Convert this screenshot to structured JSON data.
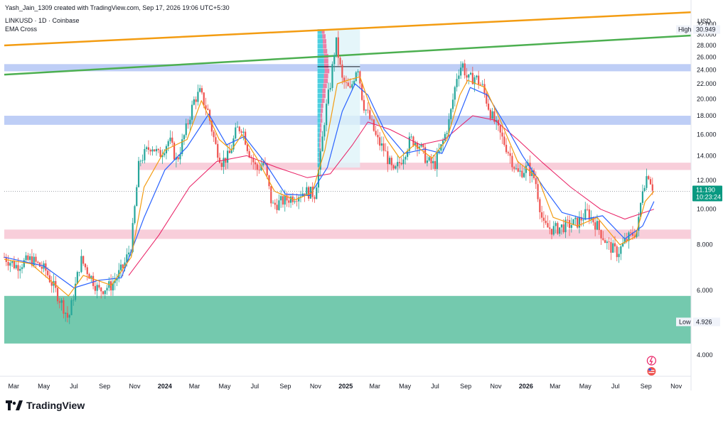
{
  "header": {
    "credit": "Yash_Jain_1309 created with TradingView.com, Sep 17, 2026 19:06 UTC+5:30",
    "symbol": "LINKUSD · 1D · Coinbase",
    "indicator": "EMA Cross"
  },
  "brand": {
    "logo_icon": "tradingview-logo-icon",
    "name": "TradingView"
  },
  "chart_data": {
    "type": "candlestick",
    "symbol": "LINKUSD",
    "interval": "1D",
    "exchange": "Coinbase",
    "currency": "USD",
    "y_axis": {
      "scale": "log",
      "ticks": [
        "32.000",
        "30.000",
        "28.000",
        "26.000",
        "24.000",
        "22.000",
        "20.000",
        "18.000",
        "16.000",
        "14.000",
        "12.000",
        "10.000",
        "8.000",
        "6.000",
        "4.000"
      ],
      "tick_values": [
        32,
        30,
        28,
        26,
        24,
        22,
        20,
        18,
        16,
        14,
        12,
        10,
        8,
        6,
        4
      ],
      "range": [
        3.5,
        35
      ]
    },
    "x_axis": {
      "ticks": [
        "Mar",
        "May",
        "Jul",
        "Sep",
        "Nov",
        "2024",
        "Mar",
        "May",
        "Jul",
        "Sep",
        "Nov",
        "2025",
        "Mar",
        "May",
        "Jul",
        "Sep",
        "Nov",
        "2026",
        "Mar",
        "May",
        "Jul",
        "Sep",
        "Nov"
      ],
      "tick_dates": [
        "2023-03-01",
        "2023-05-01",
        "2023-07-01",
        "2023-09-01",
        "2023-11-01",
        "2024-01-01",
        "2024-03-01",
        "2024-05-01",
        "2024-07-01",
        "2024-09-01",
        "2024-11-01",
        "2025-01-01",
        "2025-03-01",
        "2025-05-01",
        "2025-07-01",
        "2025-09-01",
        "2025-11-01",
        "2026-01-01",
        "2026-03-01",
        "2026-05-01",
        "2026-07-01",
        "2026-09-01",
        "2026-11-01"
      ],
      "bold_labels": [
        "2024",
        "2025",
        "2026"
      ],
      "range": [
        "2023-02-10",
        "2026-12-01"
      ]
    },
    "price_points": [
      [
        "2023-02-10",
        7.4
      ],
      [
        "2023-03-05",
        7.0
      ],
      [
        "2023-04-05",
        7.3
      ],
      [
        "2023-05-05",
        6.8
      ],
      [
        "2023-06-10",
        5.4
      ],
      [
        "2023-06-20",
        5.0
      ],
      [
        "2023-07-15",
        7.3
      ],
      [
        "2023-08-20",
        6.0
      ],
      [
        "2023-09-15",
        6.2
      ],
      [
        "2023-10-10",
        7.0
      ],
      [
        "2023-10-25",
        8.0
      ],
      [
        "2023-11-10",
        13.5
      ],
      [
        "2023-12-05",
        15.0
      ],
      [
        "2023-12-20",
        14.0
      ],
      [
        "2024-01-10",
        15.5
      ],
      [
        "2024-01-25",
        13.5
      ],
      [
        "2024-02-10",
        16.0
      ],
      [
        "2024-03-01",
        20.0
      ],
      [
        "2024-03-12",
        20.8
      ],
      [
        "2024-03-28",
        18.5
      ],
      [
        "2024-04-12",
        15.0
      ],
      [
        "2024-04-25",
        13.5
      ],
      [
        "2024-05-10",
        14.0
      ],
      [
        "2024-05-25",
        16.5
      ],
      [
        "2024-06-05",
        16.8
      ],
      [
        "2024-06-18",
        14.5
      ],
      [
        "2024-07-05",
        12.8
      ],
      [
        "2024-07-20",
        13.5
      ],
      [
        "2024-08-05",
        10.2
      ],
      [
        "2024-08-25",
        10.5
      ],
      [
        "2024-09-15",
        10.8
      ],
      [
        "2024-10-10",
        11.2
      ],
      [
        "2024-10-30",
        11.0
      ],
      [
        "2024-11-10",
        13.5
      ],
      [
        "2024-11-20",
        18.0
      ],
      [
        "2024-12-01",
        22.0
      ],
      [
        "2024-12-12",
        29.0
      ],
      [
        "2024-12-25",
        22.5
      ],
      [
        "2025-01-10",
        21.0
      ],
      [
        "2025-01-25",
        25.0
      ],
      [
        "2025-02-05",
        19.5
      ],
      [
        "2025-02-20",
        17.5
      ],
      [
        "2025-03-05",
        15.5
      ],
      [
        "2025-03-20",
        14.5
      ],
      [
        "2025-04-08",
        12.5
      ],
      [
        "2025-04-25",
        13.8
      ],
      [
        "2025-05-12",
        15.5
      ],
      [
        "2025-05-28",
        15.2
      ],
      [
        "2025-06-15",
        13.5
      ],
      [
        "2025-06-30",
        13.2
      ],
      [
        "2025-07-15",
        15.0
      ],
      [
        "2025-07-30",
        17.5
      ],
      [
        "2025-08-15",
        23.5
      ],
      [
        "2025-08-25",
        25.0
      ],
      [
        "2025-09-05",
        22.5
      ],
      [
        "2025-09-20",
        23.0
      ],
      [
        "2025-10-05",
        21.5
      ],
      [
        "2025-10-20",
        18.5
      ],
      [
        "2025-11-05",
        16.5
      ],
      [
        "2025-11-25",
        14.5
      ],
      [
        "2025-12-15",
        12.5
      ],
      [
        "2026-01-05",
        13.0
      ],
      [
        "2026-01-20",
        12.0
      ],
      [
        "2026-02-05",
        9.0
      ],
      [
        "2026-02-25",
        8.8
      ],
      [
        "2026-03-20",
        9.0
      ],
      [
        "2026-04-15",
        9.2
      ],
      [
        "2026-05-05",
        9.8
      ],
      [
        "2026-05-25",
        9.0
      ],
      [
        "2026-06-15",
        8.0
      ],
      [
        "2026-07-05",
        7.6
      ],
      [
        "2026-07-25",
        8.3
      ],
      [
        "2026-08-15",
        8.8
      ],
      [
        "2026-08-25",
        11.5
      ],
      [
        "2026-09-05",
        12.6
      ],
      [
        "2026-09-17",
        11.19
      ]
    ],
    "ema_fast_points": [
      [
        "2023-02-10",
        7.3
      ],
      [
        "2023-04-05",
        7.1
      ],
      [
        "2023-06-20",
        5.8
      ],
      [
        "2023-07-20",
        6.6
      ],
      [
        "2023-09-15",
        6.2
      ],
      [
        "2023-10-25",
        7.4
      ],
      [
        "2023-11-20",
        11.5
      ],
      [
        "2024-01-01",
        14.5
      ],
      [
        "2024-02-15",
        15.5
      ],
      [
        "2024-03-15",
        19.8
      ],
      [
        "2024-04-20",
        15.5
      ],
      [
        "2024-05-15",
        14.5
      ],
      [
        "2024-06-05",
        16.0
      ],
      [
        "2024-07-05",
        13.8
      ],
      [
        "2024-08-10",
        11.2
      ],
      [
        "2024-09-20",
        10.6
      ],
      [
        "2024-10-25",
        11.1
      ],
      [
        "2024-11-20",
        14.5
      ],
      [
        "2024-12-15",
        22.0
      ],
      [
        "2025-01-05",
        22.5
      ],
      [
        "2025-01-30",
        23.0
      ],
      [
        "2025-02-20",
        19.0
      ],
      [
        "2025-03-25",
        15.5
      ],
      [
        "2025-04-20",
        13.8
      ],
      [
        "2025-05-20",
        15.0
      ],
      [
        "2025-06-25",
        13.8
      ],
      [
        "2025-07-25",
        15.5
      ],
      [
        "2025-08-20",
        20.5
      ],
      [
        "2025-09-05",
        22.5
      ],
      [
        "2025-10-10",
        21.5
      ],
      [
        "2025-11-10",
        17.5
      ],
      [
        "2025-12-15",
        13.5
      ],
      [
        "2026-01-25",
        12.2
      ],
      [
        "2026-02-25",
        9.5
      ],
      [
        "2026-04-15",
        9.0
      ],
      [
        "2026-05-25",
        9.5
      ],
      [
        "2026-07-10",
        8.0
      ],
      [
        "2026-08-10",
        8.4
      ],
      [
        "2026-08-30",
        10.5
      ],
      [
        "2026-09-17",
        11.2
      ]
    ],
    "ema_slow_points": [
      [
        "2023-02-10",
        7.4
      ],
      [
        "2023-05-01",
        7.0
      ],
      [
        "2023-07-01",
        6.1
      ],
      [
        "2023-08-20",
        6.4
      ],
      [
        "2023-10-05",
        6.5
      ],
      [
        "2023-11-20",
        9.5
      ],
      [
        "2024-01-01",
        12.8
      ],
      [
        "2024-02-15",
        14.8
      ],
      [
        "2024-03-30",
        18.2
      ],
      [
        "2024-05-05",
        15.0
      ],
      [
        "2024-06-10",
        15.8
      ],
      [
        "2024-07-20",
        13.5
      ],
      [
        "2024-09-01",
        11.0
      ],
      [
        "2024-10-20",
        10.9
      ],
      [
        "2024-11-25",
        13.0
      ],
      [
        "2024-12-25",
        18.5
      ],
      [
        "2025-01-20",
        22.0
      ],
      [
        "2025-02-15",
        20.5
      ],
      [
        "2025-03-20",
        16.5
      ],
      [
        "2025-04-30",
        14.2
      ],
      [
        "2025-06-10",
        14.6
      ],
      [
        "2025-07-15",
        14.2
      ],
      [
        "2025-08-15",
        17.5
      ],
      [
        "2025-09-10",
        21.5
      ],
      [
        "2025-10-15",
        20.5
      ],
      [
        "2025-11-20",
        17.0
      ],
      [
        "2025-12-25",
        14.0
      ],
      [
        "2026-02-05",
        11.5
      ],
      [
        "2026-03-15",
        9.8
      ],
      [
        "2026-05-01",
        9.4
      ],
      [
        "2026-06-05",
        9.6
      ],
      [
        "2026-07-20",
        8.3
      ],
      [
        "2026-08-25",
        9.0
      ],
      [
        "2026-09-17",
        10.5
      ]
    ],
    "ema_long_points": [
      [
        "2023-10-20",
        6.6
      ],
      [
        "2023-12-20",
        8.5
      ],
      [
        "2024-02-20",
        11.5
      ],
      [
        "2024-04-15",
        13.5
      ],
      [
        "2024-06-15",
        14.0
      ],
      [
        "2024-08-15",
        13.0
      ],
      [
        "2024-10-15",
        12.2
      ],
      [
        "2024-12-01",
        12.5
      ],
      [
        "2025-01-15",
        15.0
      ],
      [
        "2025-02-15",
        17.3
      ],
      [
        "2025-04-01",
        16.5
      ],
      [
        "2025-06-01",
        15.0
      ],
      [
        "2025-07-20",
        15.5
      ],
      [
        "2025-09-15",
        18.0
      ],
      [
        "2025-10-30",
        17.5
      ],
      [
        "2025-12-15",
        15.5
      ],
      [
        "2026-02-01",
        13.5
      ],
      [
        "2026-04-01",
        11.5
      ],
      [
        "2026-06-01",
        10.0
      ],
      [
        "2026-07-20",
        9.4
      ],
      [
        "2026-09-17",
        10.0
      ]
    ],
    "trendlines": [
      {
        "color": "#f39c12",
        "from": [
          "2023-02-10",
          28.0
        ],
        "to": [
          "2026-12-01",
          34.5
        ]
      },
      {
        "color": "#4caf50",
        "from": [
          "2023-02-10",
          23.3
        ],
        "to": [
          "2026-12-01",
          29.8
        ]
      }
    ],
    "zones": [
      {
        "color": "#b3c5f5",
        "low": 23.8,
        "high": 24.9,
        "from": "2023-02-10"
      },
      {
        "color": "#b3c5f5",
        "low": 17.0,
        "high": 18.0,
        "from": "2023-02-10"
      },
      {
        "color": "#f7c6d3",
        "low": 12.8,
        "high": 13.4,
        "from": "2023-11-10"
      },
      {
        "color": "#f7c6d3",
        "low": 8.3,
        "high": 8.8,
        "from": "2023-02-10"
      },
      {
        "color": "#5cc0a0",
        "low": 4.3,
        "high": 5.8,
        "from": "2023-02-10"
      }
    ],
    "volume_profile": {
      "from": "2024-11-05",
      "to": "2025-01-30",
      "poc": 24.5,
      "range": [
        13,
        31
      ]
    },
    "labels": {
      "currency": "USD",
      "high_label": "High",
      "high_value": "30.949",
      "low_label": "Low",
      "low_value": "4.926",
      "last_price": "11.190",
      "countdown": "10:23:24"
    },
    "colors": {
      "up": "#26a69a",
      "down": "#ef5350",
      "ema_fast": "#f39c12",
      "ema_slow": "#2962ff",
      "ema_long": "#e91e63",
      "last_price_bg": "#089981"
    }
  }
}
